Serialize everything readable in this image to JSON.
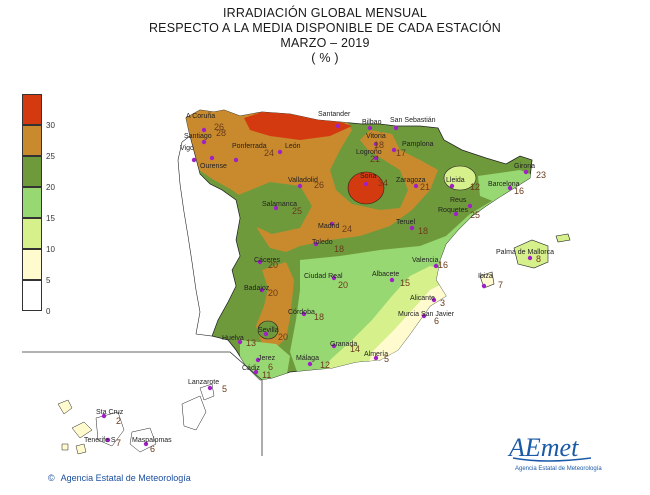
{
  "title": {
    "line1": "IRRADIACIÓN GLOBAL MENSUAL",
    "line2": "RESPECTO A LA MEDIA DISPONIBLE DE CADA ESTACIÓN",
    "line3": "MARZO  – 2019",
    "line4": "( % )"
  },
  "legend": {
    "ticks": [
      "0",
      "5",
      "10",
      "15",
      "20",
      "25",
      "30"
    ],
    "colors": [
      "#ffffff",
      "#fffbcf",
      "#d6f08c",
      "#98d872",
      "#6f9a3c",
      "#c98a2e",
      "#d43a10"
    ]
  },
  "stations": [
    {
      "name": "A Coruña",
      "value": "26"
    },
    {
      "name": "Santiago",
      "value": "28"
    },
    {
      "name": "Vigo",
      "value": ""
    },
    {
      "name": "Ourense",
      "value": ""
    },
    {
      "name": "Santander",
      "value": ""
    },
    {
      "name": "Bilbao",
      "value": ""
    },
    {
      "name": "San Sebastián",
      "value": ""
    },
    {
      "name": "Ponferrada",
      "value": ""
    },
    {
      "name": "León",
      "value": "24"
    },
    {
      "name": "Vitoria",
      "value": "18"
    },
    {
      "name": "Pamplona",
      "value": "17"
    },
    {
      "name": "Logroño",
      "value": "21"
    },
    {
      "name": "Girona",
      "value": "23"
    },
    {
      "name": "Lleida",
      "value": "12"
    },
    {
      "name": "Barcelona",
      "value": "16"
    },
    {
      "name": "Valladolid",
      "value": "26"
    },
    {
      "name": "Soria",
      "value": "34"
    },
    {
      "name": "Zaragoza",
      "value": "21"
    },
    {
      "name": "Reus",
      "value": ""
    },
    {
      "name": "Roquetes",
      "value": "25"
    },
    {
      "name": "Salamanca",
      "value": "25"
    },
    {
      "name": "Madrid",
      "value": "24"
    },
    {
      "name": "Teruel",
      "value": "18"
    },
    {
      "name": "Palma de Mallorca",
      "value": "8"
    },
    {
      "name": "Toledo",
      "value": "18"
    },
    {
      "name": "Cáceres",
      "value": "20"
    },
    {
      "name": "Valencia",
      "value": "16"
    },
    {
      "name": "Ibiza",
      "value": "7"
    },
    {
      "name": "Ciudad Real",
      "value": "20"
    },
    {
      "name": "Albacete",
      "value": "15"
    },
    {
      "name": "Badajoz",
      "value": "20"
    },
    {
      "name": "Alicante",
      "value": "3"
    },
    {
      "name": "Córdoba",
      "value": "18"
    },
    {
      "name": "Murcia San Javier",
      "value": "6"
    },
    {
      "name": "Sevilla",
      "value": "20"
    },
    {
      "name": "Huelva",
      "value": "13"
    },
    {
      "name": "Granada",
      "value": "14"
    },
    {
      "name": "Almería",
      "value": "5"
    },
    {
      "name": "Jerez",
      "value": "6"
    },
    {
      "name": "Málaga",
      "value": "12"
    },
    {
      "name": "Cádiz",
      "value": "11"
    },
    {
      "name": "Lanzarote",
      "value": "5"
    },
    {
      "name": "Sta Cruz",
      "value": "2"
    },
    {
      "name": "Tenerife S",
      "value": "7"
    },
    {
      "name": "Maspalomas",
      "value": "6"
    }
  ],
  "footer": {
    "copyright_icon": "copyright-icon",
    "agency": "Agencia Estatal de Meteorología"
  },
  "logo": {
    "brand": "AEmet",
    "subtitle": "Agencia Estatal de Meteorología"
  }
}
